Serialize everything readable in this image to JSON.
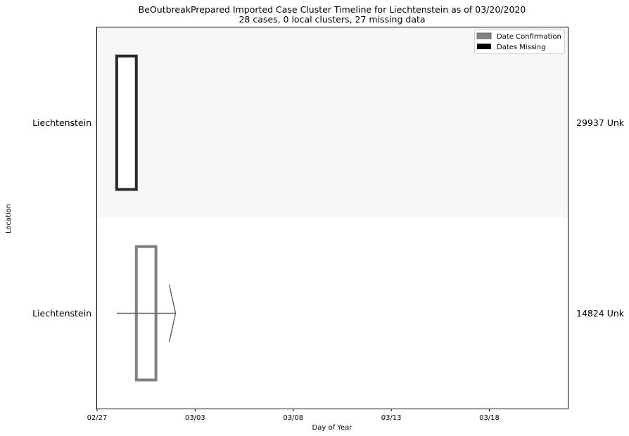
{
  "chart_data": {
    "type": "timeline",
    "title": "BeOutbreakPrepared Imported Case Cluster Timeline for Liechtenstein as of 03/20/2020",
    "subtitle": "28 cases, 0 local clusters, 27 missing data",
    "xlabel": "Day of Year",
    "ylabel": "Location",
    "x_ticks": [
      "02/27",
      "03/03",
      "03/08",
      "03/13",
      "03/18"
    ],
    "xlim": [
      "02/27",
      "03/22"
    ],
    "legend": {
      "placement": "top-right",
      "entries": [
        {
          "label": "Date Confirmation",
          "color": "#808080"
        },
        {
          "label": "Dates Missing",
          "color": "#000000"
        }
      ]
    },
    "rows": [
      {
        "location": "Liechtenstein",
        "right_label": "29937 Unk",
        "background": "#f7f7f7",
        "box": {
          "start": "02/28",
          "end": "02/29",
          "color": "#2b2b2b",
          "fill": "#ffffff"
        },
        "arrow": null
      },
      {
        "location": "Liechtenstein",
        "right_label": "14824 Unk",
        "background": "#ffffff",
        "box": {
          "start": "02/29",
          "end": "03/01",
          "color": "#808080",
          "fill": "#ffffff"
        },
        "arrow": {
          "from": "02/28",
          "to": "03/02",
          "color": "#666666"
        }
      }
    ]
  }
}
